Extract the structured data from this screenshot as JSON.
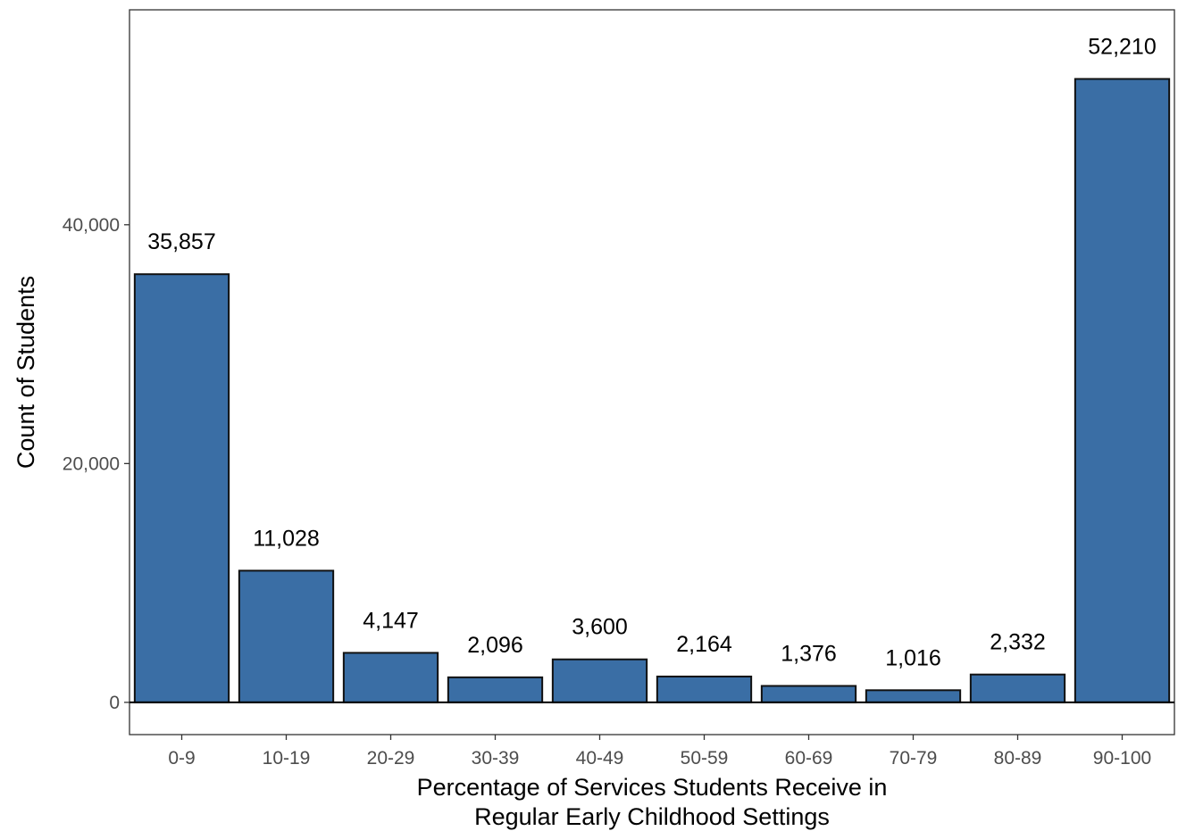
{
  "chart_data": {
    "type": "bar",
    "categories": [
      "0-9",
      "10-19",
      "20-29",
      "30-39",
      "40-49",
      "50-59",
      "60-69",
      "70-79",
      "80-89",
      "90-100"
    ],
    "values": [
      35857,
      11028,
      4147,
      2096,
      3600,
      2164,
      1376,
      1016,
      2332,
      52210
    ],
    "data_labels": [
      "35,857",
      "11,028",
      "4,147",
      "2,096",
      "3,600",
      "2,164",
      "1,376",
      "1,016",
      "2,332",
      "52,210"
    ],
    "title": "",
    "xlabel": "Percentage of Services Students Receive in",
    "xlabel_line2": "Regular Early Childhood Settings",
    "ylabel": "Count of Students",
    "ylim": [
      -2700,
      58000
    ],
    "yticks": [
      0,
      20000,
      40000
    ],
    "ytick_labels": [
      "0",
      "20,000",
      "40,000"
    ],
    "grid": false,
    "legend": "none",
    "colors": {
      "bar_fill": "#3a6ea5",
      "bar_stroke": "#111111",
      "baseline": "#000000",
      "panel_border": "#333333"
    }
  }
}
